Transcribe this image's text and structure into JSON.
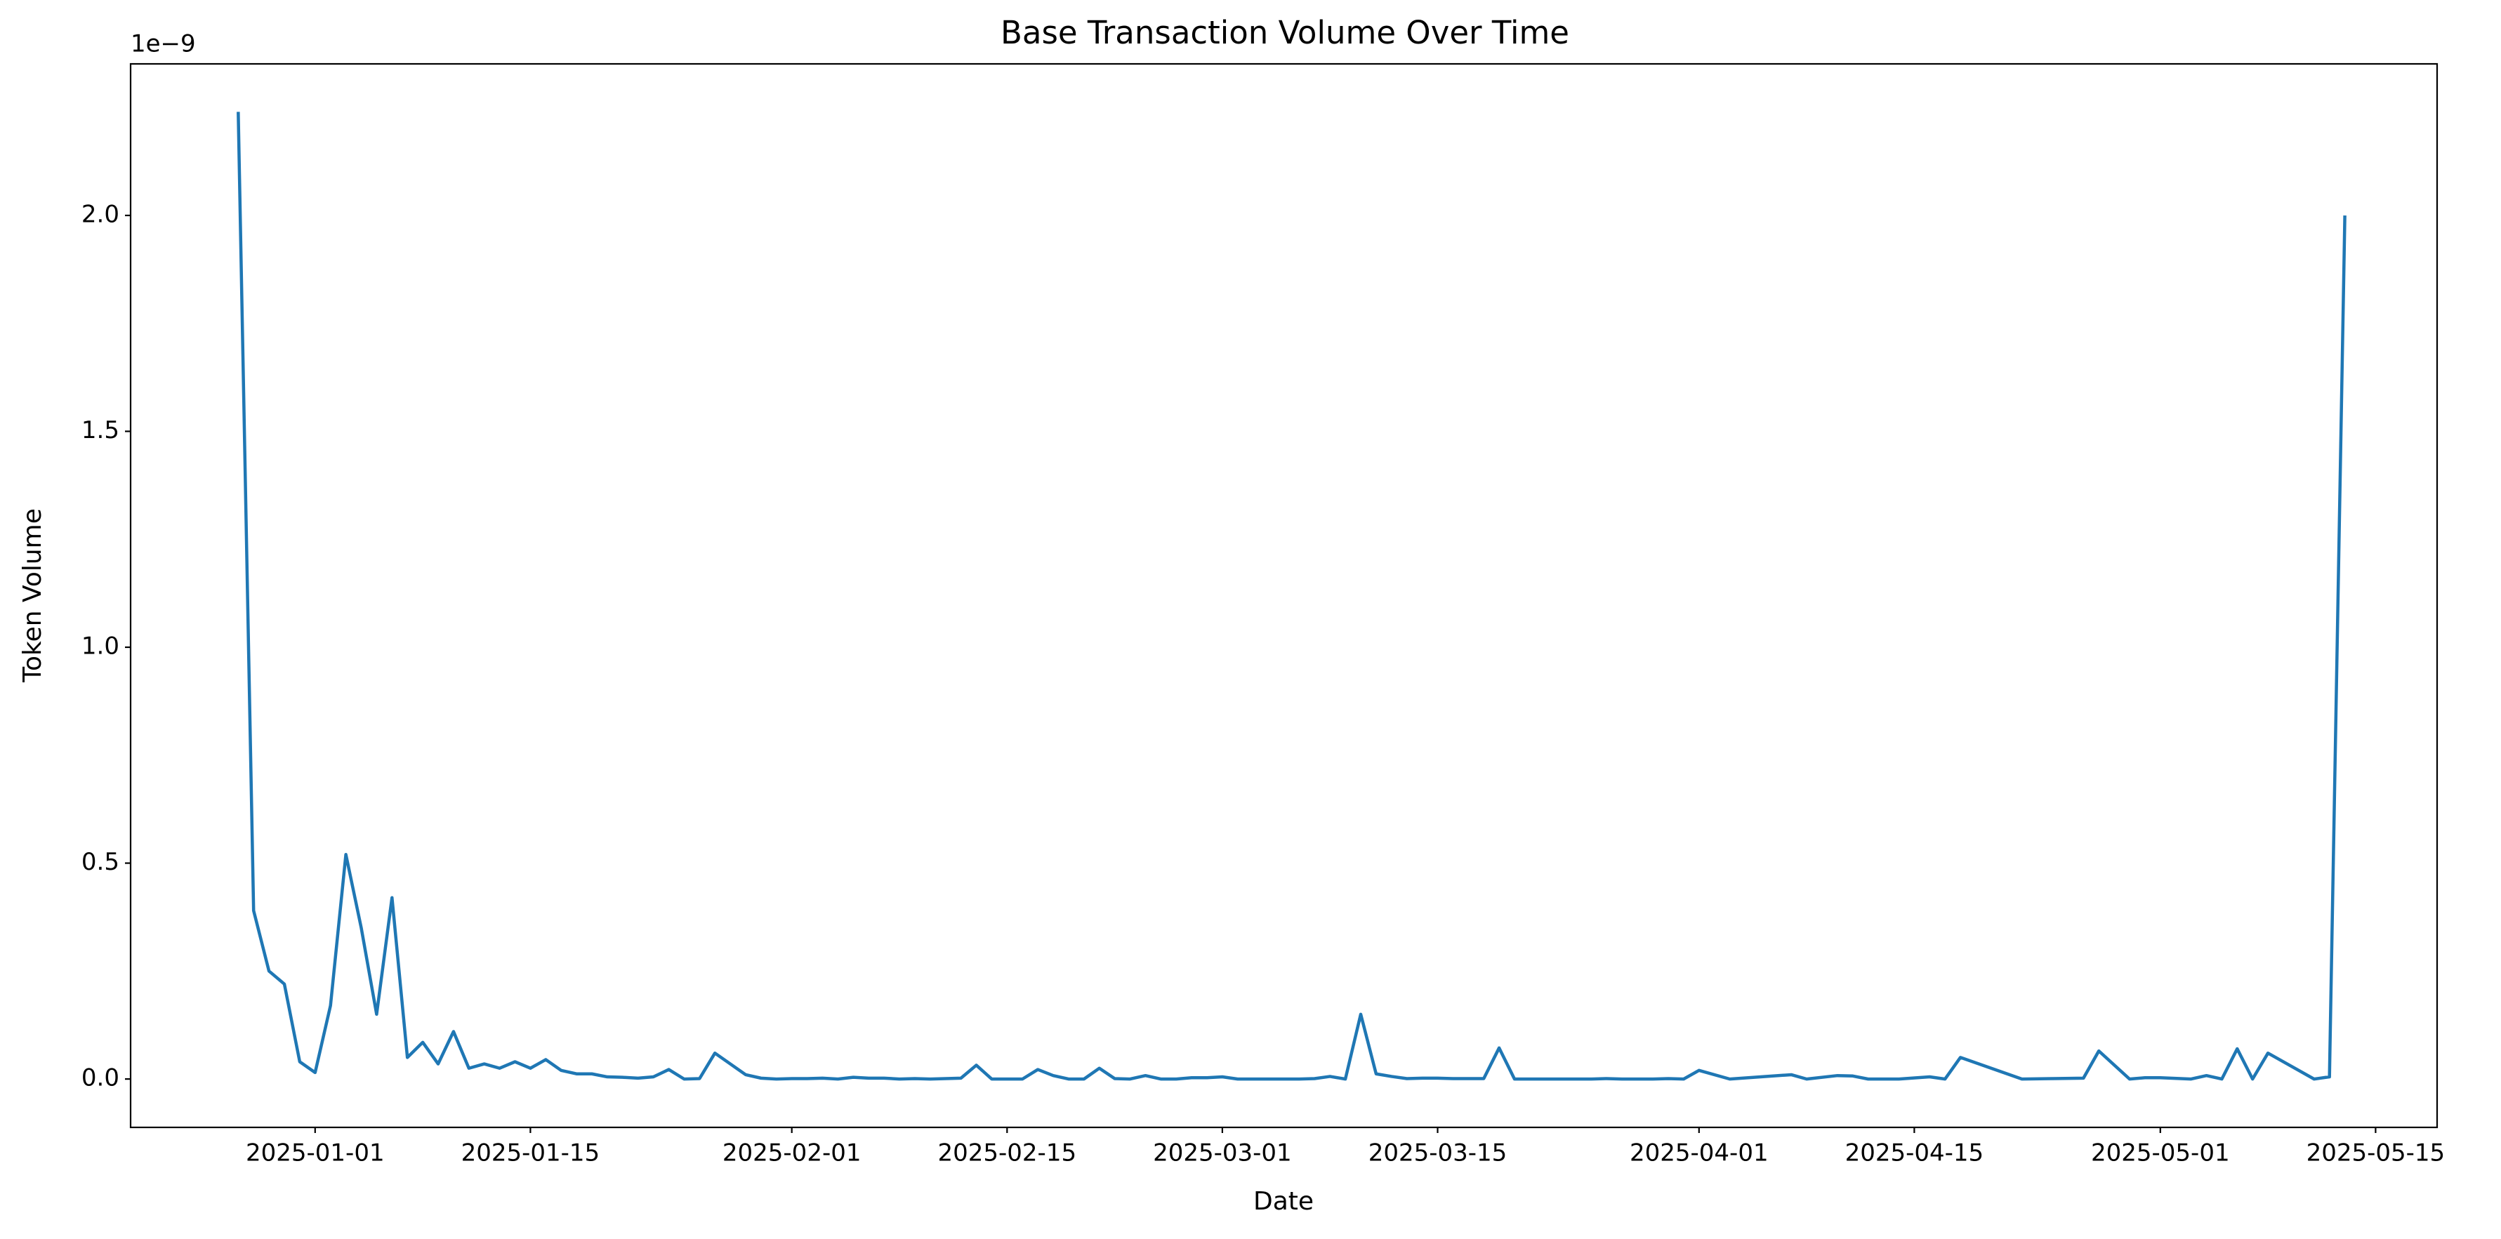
{
  "chart_data": {
    "type": "line",
    "title": "Base Transaction Volume Over Time",
    "x_label": "Date",
    "y_label": "Token Volume",
    "y_offset_text": "1e−9",
    "x": [
      "2024-12-27",
      "2024-12-28",
      "2024-12-29",
      "2024-12-30",
      "2024-12-31",
      "2025-01-01",
      "2025-01-02",
      "2025-01-03",
      "2025-01-04",
      "2025-01-05",
      "2025-01-06",
      "2025-01-07",
      "2025-01-08",
      "2025-01-09",
      "2025-01-10",
      "2025-01-11",
      "2025-01-12",
      "2025-01-13",
      "2025-01-14",
      "2025-01-15",
      "2025-01-16",
      "2025-01-17",
      "2025-01-18",
      "2025-01-19",
      "2025-01-20",
      "2025-01-21",
      "2025-01-22",
      "2025-01-23",
      "2025-01-24",
      "2025-01-25",
      "2025-01-26",
      "2025-01-27",
      "2025-01-28",
      "2025-01-29",
      "2025-01-30",
      "2025-01-31",
      "2025-02-01",
      "2025-02-02",
      "2025-02-03",
      "2025-02-04",
      "2025-02-05",
      "2025-02-06",
      "2025-02-07",
      "2025-02-08",
      "2025-02-09",
      "2025-02-10",
      "2025-02-11",
      "2025-02-12",
      "2025-02-13",
      "2025-02-14",
      "2025-02-15",
      "2025-02-16",
      "2025-02-17",
      "2025-02-18",
      "2025-02-19",
      "2025-02-20",
      "2025-02-21",
      "2025-02-22",
      "2025-02-23",
      "2025-02-24",
      "2025-02-25",
      "2025-02-26",
      "2025-02-27",
      "2025-02-28",
      "2025-03-01",
      "2025-03-02",
      "2025-03-03",
      "2025-03-04",
      "2025-03-05",
      "2025-03-06",
      "2025-03-07",
      "2025-03-08",
      "2025-03-09",
      "2025-03-10",
      "2025-03-11",
      "2025-03-12",
      "2025-03-13",
      "2025-03-14",
      "2025-03-15",
      "2025-03-16",
      "2025-03-17",
      "2025-03-18",
      "2025-03-19",
      "2025-03-20",
      "2025-03-21",
      "2025-03-22",
      "2025-03-23",
      "2025-03-24",
      "2025-03-25",
      "2025-03-26",
      "2025-03-27",
      "2025-03-28",
      "2025-03-29",
      "2025-03-30",
      "2025-03-31",
      "2025-04-01",
      "2025-04-03",
      "2025-04-07",
      "2025-04-08",
      "2025-04-10",
      "2025-04-11",
      "2025-04-12",
      "2025-04-14",
      "2025-04-16",
      "2025-04-17",
      "2025-04-18",
      "2025-04-22",
      "2025-04-24",
      "2025-04-26",
      "2025-04-27",
      "2025-04-29",
      "2025-04-30",
      "2025-05-01",
      "2025-05-03",
      "2025-05-04",
      "2025-05-05",
      "2025-05-06",
      "2025-05-07",
      "2025-05-08",
      "2025-05-11",
      "2025-05-12",
      "2025-05-13"
    ],
    "series": [
      {
        "name": "Base",
        "color": "#1f77b4",
        "values": [
          2.24,
          0.39,
          0.25,
          0.22,
          0.04,
          0.015,
          0.17,
          0.52,
          0.35,
          0.15,
          0.42,
          0.05,
          0.085,
          0.035,
          0.11,
          0.025,
          0.035,
          0.025,
          0.04,
          0.025,
          0.045,
          0.02,
          0.012,
          0.012,
          0.005,
          0.004,
          0.002,
          0.005,
          0.022,
          0.0,
          0.001,
          0.06,
          0.035,
          0.01,
          0.002,
          0.0,
          0.001,
          0.001,
          0.002,
          0.0,
          0.004,
          0.002,
          0.002,
          0.0,
          0.001,
          0.0,
          0.001,
          0.002,
          0.032,
          0.0,
          0.0,
          0.0,
          0.022,
          0.008,
          0.0,
          0.0,
          0.025,
          0.001,
          0.0,
          0.008,
          0.0,
          0.0,
          0.003,
          0.003,
          0.005,
          0.0,
          0.0,
          0.0,
          0.0,
          0.0,
          0.001,
          0.006,
          0.0,
          0.15,
          0.012,
          0.006,
          0.001,
          0.002,
          0.002,
          0.001,
          0.001,
          0.001,
          0.072,
          0.0,
          0.0,
          0.0,
          0.0,
          0.0,
          0.0,
          0.001,
          0.0,
          0.0,
          0.0,
          0.001,
          0.0,
          0.02,
          0.0,
          0.01,
          0.0,
          0.008,
          0.007,
          0.0,
          0.0,
          0.005,
          0.0,
          0.05,
          0.0,
          0.001,
          0.002,
          0.065,
          0.0,
          0.003,
          0.003,
          0.0,
          0.008,
          0.0,
          0.07,
          0.0,
          0.06,
          0.0,
          0.005,
          2.0
        ]
      }
    ],
    "xlim": [
      "2024-12-20",
      "2025-05-19"
    ],
    "xticks": [
      "2025-01-01",
      "2025-01-15",
      "2025-02-01",
      "2025-02-15",
      "2025-03-01",
      "2025-03-15",
      "2025-04-01",
      "2025-04-15",
      "2025-05-01",
      "2025-05-15"
    ],
    "ylim": [
      -0.112,
      2.351
    ],
    "yticks": [
      {
        "value": 0,
        "label": "0.0"
      },
      0.5,
      {
        "value": 1,
        "label": "1.0"
      },
      1.5,
      {
        "value": 2,
        "label": "2.0"
      }
    ],
    "grid": false
  }
}
